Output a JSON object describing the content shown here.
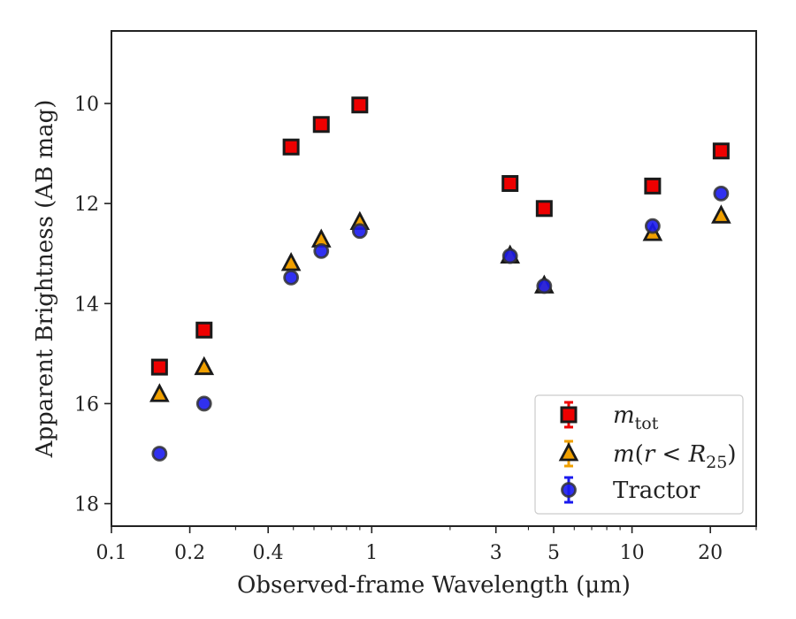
{
  "chart_data": {
    "type": "scatter",
    "xlabel": "Observed-frame Wavelength (μm)",
    "ylabel": "Apparent Brightness (AB mag)",
    "x_scale": "log",
    "xlim": [
      0.1,
      30
    ],
    "ylim": [
      18.45,
      8.55
    ],
    "y_inverted": true,
    "grid": false,
    "legend_position": "lower-right",
    "x_ticks": [
      {
        "value": 0.1,
        "label": "0.1"
      },
      {
        "value": 0.2,
        "label": "0.2"
      },
      {
        "value": 0.4,
        "label": "0.4"
      },
      {
        "value": 1,
        "label": "1"
      },
      {
        "value": 3,
        "label": "3"
      },
      {
        "value": 5,
        "label": "5"
      },
      {
        "value": 10,
        "label": "10"
      },
      {
        "value": 20,
        "label": "20"
      }
    ],
    "y_ticks": [
      {
        "value": 10,
        "label": "10"
      },
      {
        "value": 12,
        "label": "12"
      },
      {
        "value": 14,
        "label": "14"
      },
      {
        "value": 16,
        "label": "16"
      },
      {
        "value": 18,
        "label": "18"
      }
    ],
    "series": [
      {
        "name": "m_tot",
        "legend_label": "m_tot",
        "marker": "square",
        "color": "#ee0000",
        "x": [
          0.153,
          0.227,
          0.49,
          0.64,
          0.9,
          3.4,
          4.6,
          12.0,
          22.0
        ],
        "y": [
          15.27,
          14.53,
          10.87,
          10.42,
          10.03,
          11.6,
          12.1,
          11.65,
          10.95
        ]
      },
      {
        "name": "m(r < R_25)",
        "legend_label": "m(r < R25)",
        "marker": "triangle",
        "color": "#f0a000",
        "x": [
          0.153,
          0.227,
          0.49,
          0.64,
          0.9,
          3.4,
          4.6,
          12.0,
          22.0
        ],
        "y": [
          15.82,
          15.28,
          13.2,
          12.73,
          12.38,
          13.05,
          13.65,
          12.6,
          12.25
        ]
      },
      {
        "name": "Tractor",
        "legend_label": "Tractor",
        "marker": "circle",
        "color": "#1a1aee",
        "x": [
          0.153,
          0.227,
          0.49,
          0.64,
          0.9,
          3.4,
          4.6,
          12.0,
          22.0
        ],
        "y": [
          17.0,
          16.0,
          13.48,
          12.95,
          12.55,
          13.05,
          13.65,
          12.45,
          11.8
        ]
      }
    ]
  }
}
